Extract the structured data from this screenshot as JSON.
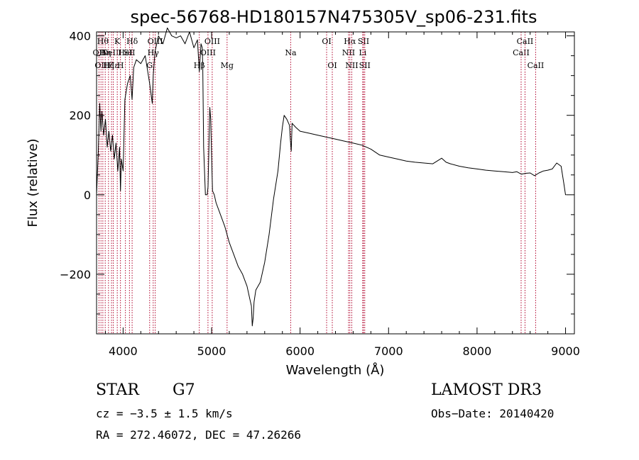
{
  "chart_data": {
    "type": "line",
    "title": "spec-56768-HD180157N475305V_sp06-231.fits",
    "xlabel": "Wavelength (Å)",
    "ylabel": "Flux (relative)",
    "xlim": [
      3700,
      9100
    ],
    "ylim": [
      -350,
      410
    ],
    "xticks": [
      4000,
      5000,
      6000,
      7000,
      8000,
      9000
    ],
    "xtick_labels": [
      "4000",
      "5000",
      "6000",
      "7000",
      "8000",
      "9000"
    ],
    "yticks": [
      -200,
      0,
      200,
      400
    ],
    "ytick_labels": [
      "−200",
      "0",
      "200",
      "400"
    ],
    "series": [
      {
        "name": "flux",
        "x": [
          3700,
          3720,
          3735,
          3750,
          3760,
          3780,
          3800,
          3820,
          3840,
          3860,
          3880,
          3900,
          3920,
          3940,
          3960,
          3970,
          3980,
          4000,
          4020,
          4050,
          4080,
          4101,
          4120,
          4150,
          4200,
          4250,
          4300,
          4330,
          4340,
          4360,
          4400,
          4450,
          4500,
          4550,
          4600,
          4650,
          4700,
          4750,
          4800,
          4840,
          4861,
          4880,
          4895,
          4900,
          4910,
          4930,
          4950,
          4960,
          4980,
          4990,
          5000,
          5010,
          5030,
          5050,
          5100,
          5150,
          5200,
          5250,
          5300,
          5350,
          5400,
          5430,
          5450,
          5460,
          5470,
          5480,
          5500,
          5550,
          5600,
          5650,
          5700,
          5750,
          5780,
          5800,
          5820,
          5850,
          5880,
          5890,
          5900,
          5910,
          5950,
          6000,
          6100,
          6200,
          6300,
          6400,
          6500,
          6600,
          6700,
          6800,
          6900,
          7000,
          7100,
          7200,
          7300,
          7400,
          7500,
          7600,
          7650,
          7700,
          7800,
          7900,
          8000,
          8100,
          8200,
          8300,
          8400,
          8450,
          8500,
          8550,
          8600,
          8650,
          8700,
          8750,
          8800,
          8850,
          8900,
          8950,
          8980,
          9000,
          9010
        ],
        "values": [
          0,
          110,
          230,
          160,
          210,
          150,
          190,
          120,
          160,
          110,
          150,
          90,
          130,
          60,
          120,
          10,
          90,
          60,
          240,
          280,
          300,
          240,
          320,
          340,
          330,
          350,
          280,
          230,
          300,
          360,
          400,
          380,
          420,
          400,
          395,
          400,
          380,
          410,
          370,
          390,
          310,
          380,
          370,
          320,
          120,
          0,
          0,
          20,
          220,
          190,
          100,
          10,
          0,
          -20,
          -50,
          -80,
          -120,
          -150,
          -180,
          -200,
          -230,
          -260,
          -280,
          -330,
          -310,
          -270,
          -240,
          -220,
          -170,
          -100,
          -10,
          60,
          130,
          170,
          200,
          190,
          175,
          140,
          110,
          180,
          170,
          160,
          155,
          150,
          145,
          140,
          135,
          130,
          125,
          115,
          100,
          95,
          90,
          85,
          82,
          80,
          78,
          92,
          82,
          78,
          72,
          68,
          65,
          62,
          60,
          58,
          56,
          58,
          52,
          54,
          55,
          48,
          55,
          60,
          62,
          65,
          80,
          72,
          30,
          0,
          0
        ]
      }
    ],
    "lines": [
      {
        "w": 3727,
        "label": "OII",
        "row": 2
      },
      {
        "w": 3750,
        "label": "OII",
        "row": 3
      },
      {
        "w": 3771,
        "label": "Hθ",
        "row": 1
      },
      {
        "w": 3798,
        "label": "Hη",
        "row": 2
      },
      {
        "w": 3835,
        "label": "Hζ",
        "row": 3
      },
      {
        "w": 3869,
        "label": "NeIII",
        "row": 2
      },
      {
        "w": 3889,
        "label": "Hε",
        "row": 3
      },
      {
        "w": 3934,
        "label": "K",
        "row": 1
      },
      {
        "w": 3970,
        "label": "H",
        "row": 3
      },
      {
        "w": 4026,
        "label": "HeI",
        "row": 2
      },
      {
        "w": 4072,
        "label": "SII",
        "row": 2
      },
      {
        "w": 4102,
        "label": "Hδ",
        "row": 1
      },
      {
        "w": 4300,
        "label": "G",
        "row": 3
      },
      {
        "w": 4340,
        "label": "Hγ",
        "row": 2
      },
      {
        "w": 4363,
        "label": "OIII",
        "row": 1
      },
      {
        "w": 4861,
        "label": "Hβ",
        "row": 3
      },
      {
        "w": 4959,
        "label": "OIII",
        "row": 2
      },
      {
        "w": 5007,
        "label": "OIII",
        "row": 1
      },
      {
        "w": 5175,
        "label": "Mg",
        "row": 3
      },
      {
        "w": 5894,
        "label": "Na",
        "row": 2
      },
      {
        "w": 6300,
        "label": "OI",
        "row": 1
      },
      {
        "w": 6364,
        "label": "OI",
        "row": 3
      },
      {
        "w": 6548,
        "label": "NII",
        "row": 2
      },
      {
        "w": 6563,
        "label": "Hα",
        "row": 1
      },
      {
        "w": 6584,
        "label": "NII",
        "row": 3
      },
      {
        "w": 6708,
        "label": "Li",
        "row": 2
      },
      {
        "w": 6717,
        "label": "SII",
        "row": 1
      },
      {
        "w": 6731,
        "label": "SII",
        "row": 3
      },
      {
        "w": 8498,
        "label": "CaII",
        "row": 2
      },
      {
        "w": 8542,
        "label": "CaII",
        "row": 1
      },
      {
        "w": 8662,
        "label": "CaII",
        "row": 3
      }
    ],
    "grid": false,
    "legend": "none"
  },
  "info": {
    "object_class": "STAR",
    "subclass": "G7",
    "survey": "LAMOST DR3",
    "cz": "cz = −3.5 ± 1.5 km/s",
    "obs_date": "Obs−Date: 20140420",
    "coords": "RA = 272.46072, DEC =  47.26266"
  },
  "colors": {
    "line_marker": "#b0002a",
    "spectrum": "#000000"
  }
}
